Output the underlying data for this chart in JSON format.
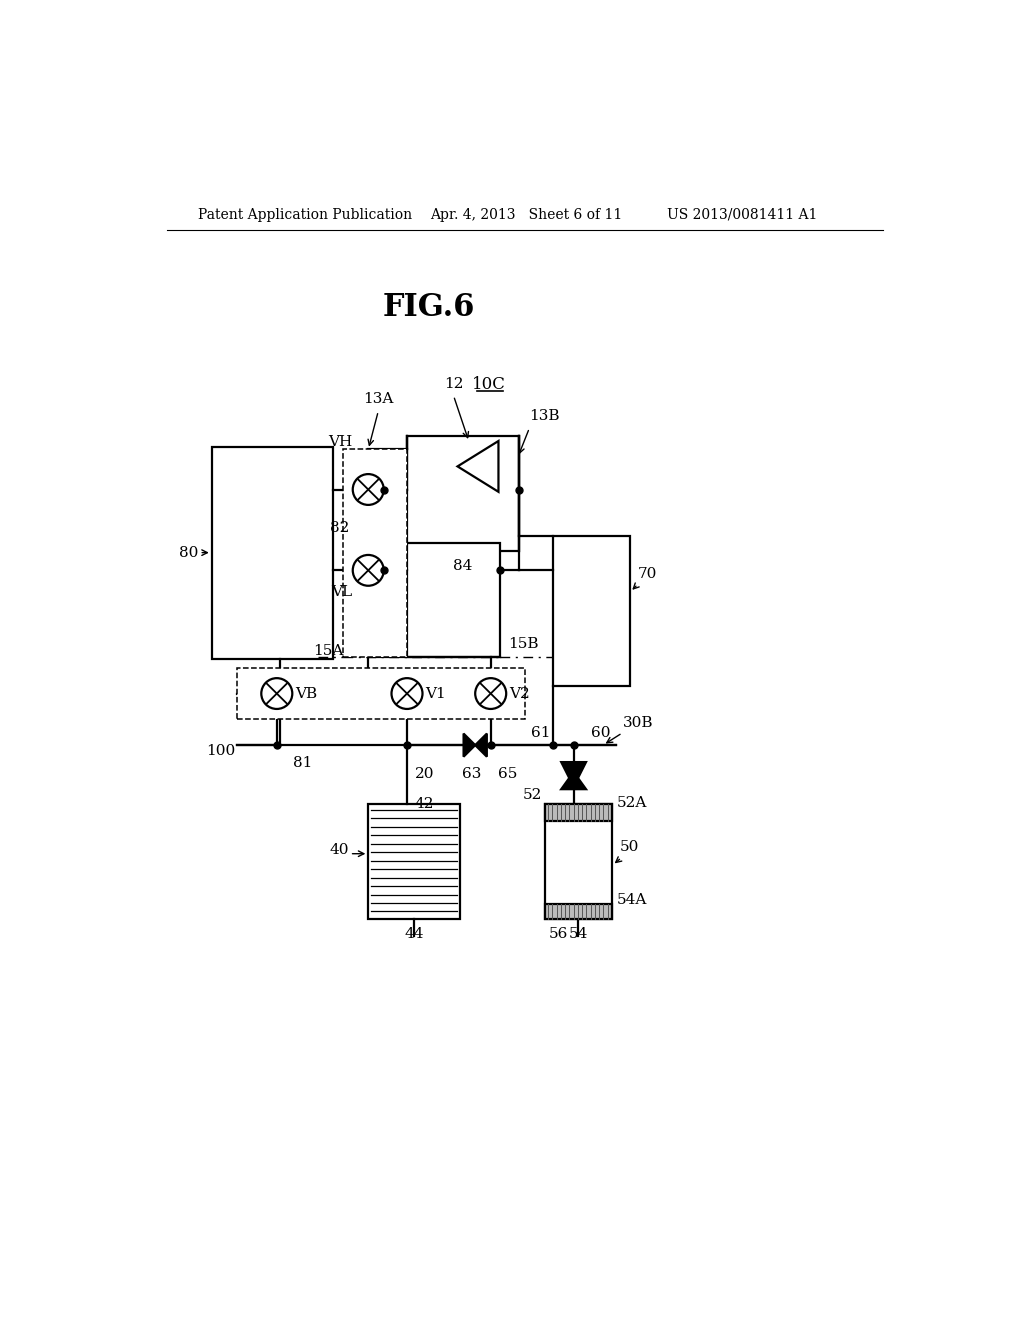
{
  "bg": "#ffffff",
  "header_left": "Patent Application Publication",
  "header_mid": "Apr. 4, 2013   Sheet 6 of 11",
  "header_right": "US 2013/0081411 A1",
  "fig_title": "FIG.6",
  "label_10C": "10C",
  "lw": 1.6
}
